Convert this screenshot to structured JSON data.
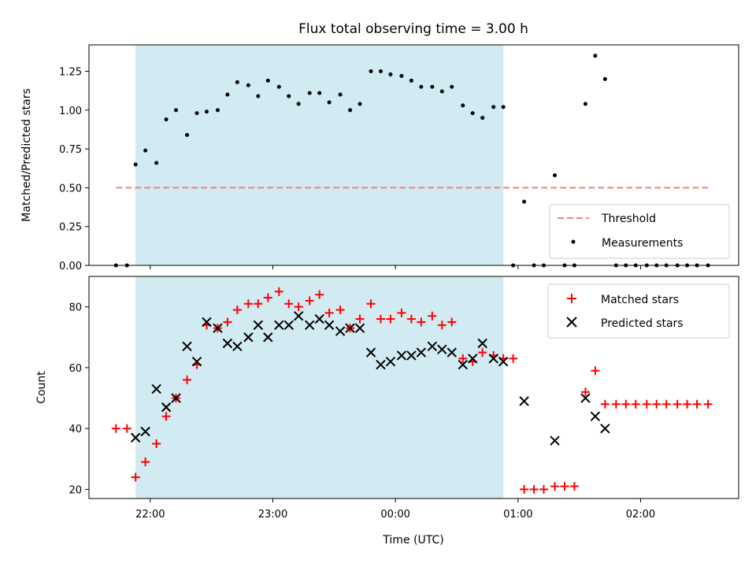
{
  "chart_data": {
    "type": "scatter",
    "title": "Flux total observing time = 3.00 h",
    "xlabel": "Time (UTC)",
    "x_ticks": [
      "22:00",
      "23:00",
      "00:00",
      "01:00",
      "02:00"
    ],
    "x_tick_hours": [
      22,
      23,
      24,
      25,
      26
    ],
    "xlim_hours": [
      21.5,
      26.8
    ],
    "shaded_interval_hours": [
      21.88,
      24.88
    ],
    "colors": {
      "shade": "#add8e6",
      "threshold": "#f08080",
      "measurements": "#000000",
      "matched": "#ff0000",
      "predicted": "#000000"
    },
    "panels": [
      {
        "ylabel": "Matched/Predicted stars",
        "ylim": [
          0,
          1.42
        ],
        "yticks": [
          "0.00",
          "0.25",
          "0.50",
          "0.75",
          "1.00",
          "1.25"
        ],
        "ytick_values": [
          0,
          0.25,
          0.5,
          0.75,
          1.0,
          1.25
        ],
        "legend_position": "lower right",
        "legend": [
          "Threshold",
          "Measurements"
        ],
        "threshold": {
          "name": "Threshold",
          "y": 0.5,
          "x_range_hours": [
            21.72,
            26.55
          ]
        },
        "series": [
          {
            "name": "Measurements",
            "marker": "dot",
            "x_hours": [
              21.72,
              21.81,
              21.88,
              21.96,
              22.05,
              22.13,
              22.21,
              22.3,
              22.38,
              22.46,
              22.55,
              22.63,
              22.71,
              22.8,
              22.88,
              22.96,
              23.05,
              23.13,
              23.21,
              23.3,
              23.38,
              23.46,
              23.55,
              23.63,
              23.71,
              23.8,
              23.88,
              23.96,
              24.05,
              24.13,
              24.21,
              24.3,
              24.38,
              24.46,
              24.55,
              24.63,
              24.71,
              24.8,
              24.88,
              24.96,
              25.05,
              25.13,
              25.21,
              25.3,
              25.38,
              25.46,
              25.55,
              25.63,
              25.71,
              25.8,
              25.88,
              25.96,
              26.05,
              26.13,
              26.21,
              26.3,
              26.38,
              26.46,
              26.55
            ],
            "y": [
              0,
              0,
              0.65,
              0.74,
              0.66,
              0.94,
              1.0,
              0.84,
              0.98,
              0.99,
              1.0,
              1.1,
              1.18,
              1.16,
              1.09,
              1.19,
              1.15,
              1.09,
              1.04,
              1.11,
              1.11,
              1.05,
              1.1,
              1.0,
              1.04,
              1.25,
              1.25,
              1.23,
              1.22,
              1.19,
              1.15,
              1.15,
              1.12,
              1.15,
              1.03,
              0.98,
              0.95,
              1.02,
              1.02,
              0,
              0.41,
              0,
              0,
              0.58,
              0,
              0,
              1.04,
              1.35,
              1.2,
              0,
              0,
              0,
              0,
              0,
              0,
              0,
              0,
              0,
              0
            ]
          }
        ]
      },
      {
        "ylabel": "Count",
        "ylim": [
          17,
          90
        ],
        "yticks": [
          "20",
          "40",
          "60",
          "80"
        ],
        "ytick_values": [
          20,
          40,
          60,
          80
        ],
        "legend_position": "upper right",
        "legend": [
          "Matched stars",
          "Predicted stars"
        ],
        "series": [
          {
            "name": "Matched stars",
            "marker": "plus",
            "x_hours": [
              21.72,
              21.81,
              21.88,
              21.96,
              22.05,
              22.13,
              22.21,
              22.3,
              22.38,
              22.46,
              22.55,
              22.63,
              22.71,
              22.8,
              22.88,
              22.96,
              23.05,
              23.13,
              23.21,
              23.3,
              23.38,
              23.46,
              23.55,
              23.63,
              23.71,
              23.8,
              23.88,
              23.96,
              24.05,
              24.13,
              24.21,
              24.3,
              24.38,
              24.46,
              24.55,
              24.63,
              24.71,
              24.8,
              24.88,
              24.96,
              25.05,
              25.13,
              25.21,
              25.3,
              25.38,
              25.46,
              25.55,
              25.63,
              25.71,
              25.8,
              25.88,
              25.96,
              26.05,
              26.13,
              26.21,
              26.3,
              26.38,
              26.46,
              26.55
            ],
            "y": [
              40,
              40,
              24,
              29,
              35,
              44,
              50,
              56,
              61,
              74,
              73,
              75,
              79,
              81,
              81,
              83,
              85,
              81,
              80,
              82,
              84,
              78,
              79,
              73,
              76,
              81,
              76,
              76,
              78,
              76,
              75,
              77,
              74,
              75,
              63,
              62,
              65,
              64,
              63,
              63,
              20,
              20,
              20,
              21,
              21,
              21,
              52,
              59,
              48,
              48,
              48,
              48,
              48,
              48,
              48,
              48,
              48,
              48,
              48
            ]
          },
          {
            "name": "Predicted stars",
            "marker": "x",
            "x_hours": [
              21.88,
              21.96,
              22.05,
              22.13,
              22.21,
              22.3,
              22.38,
              22.46,
              22.55,
              22.63,
              22.71,
              22.8,
              22.88,
              22.96,
              23.05,
              23.13,
              23.21,
              23.3,
              23.38,
              23.46,
              23.55,
              23.63,
              23.71,
              23.8,
              23.88,
              23.96,
              24.05,
              24.13,
              24.21,
              24.3,
              24.38,
              24.46,
              24.55,
              24.63,
              24.71,
              24.8,
              24.88,
              25.05,
              25.3,
              25.55,
              25.63,
              25.71
            ],
            "y": [
              37,
              39,
              53,
              47,
              50,
              67,
              62,
              75,
              73,
              68,
              67,
              70,
              74,
              70,
              74,
              74,
              77,
              74,
              76,
              74,
              72,
              73,
              73,
              65,
              61,
              62,
              64,
              64,
              65,
              67,
              66,
              65,
              61,
              63,
              68,
              63,
              62,
              49,
              36,
              50,
              44,
              40
            ]
          }
        ]
      }
    ]
  }
}
